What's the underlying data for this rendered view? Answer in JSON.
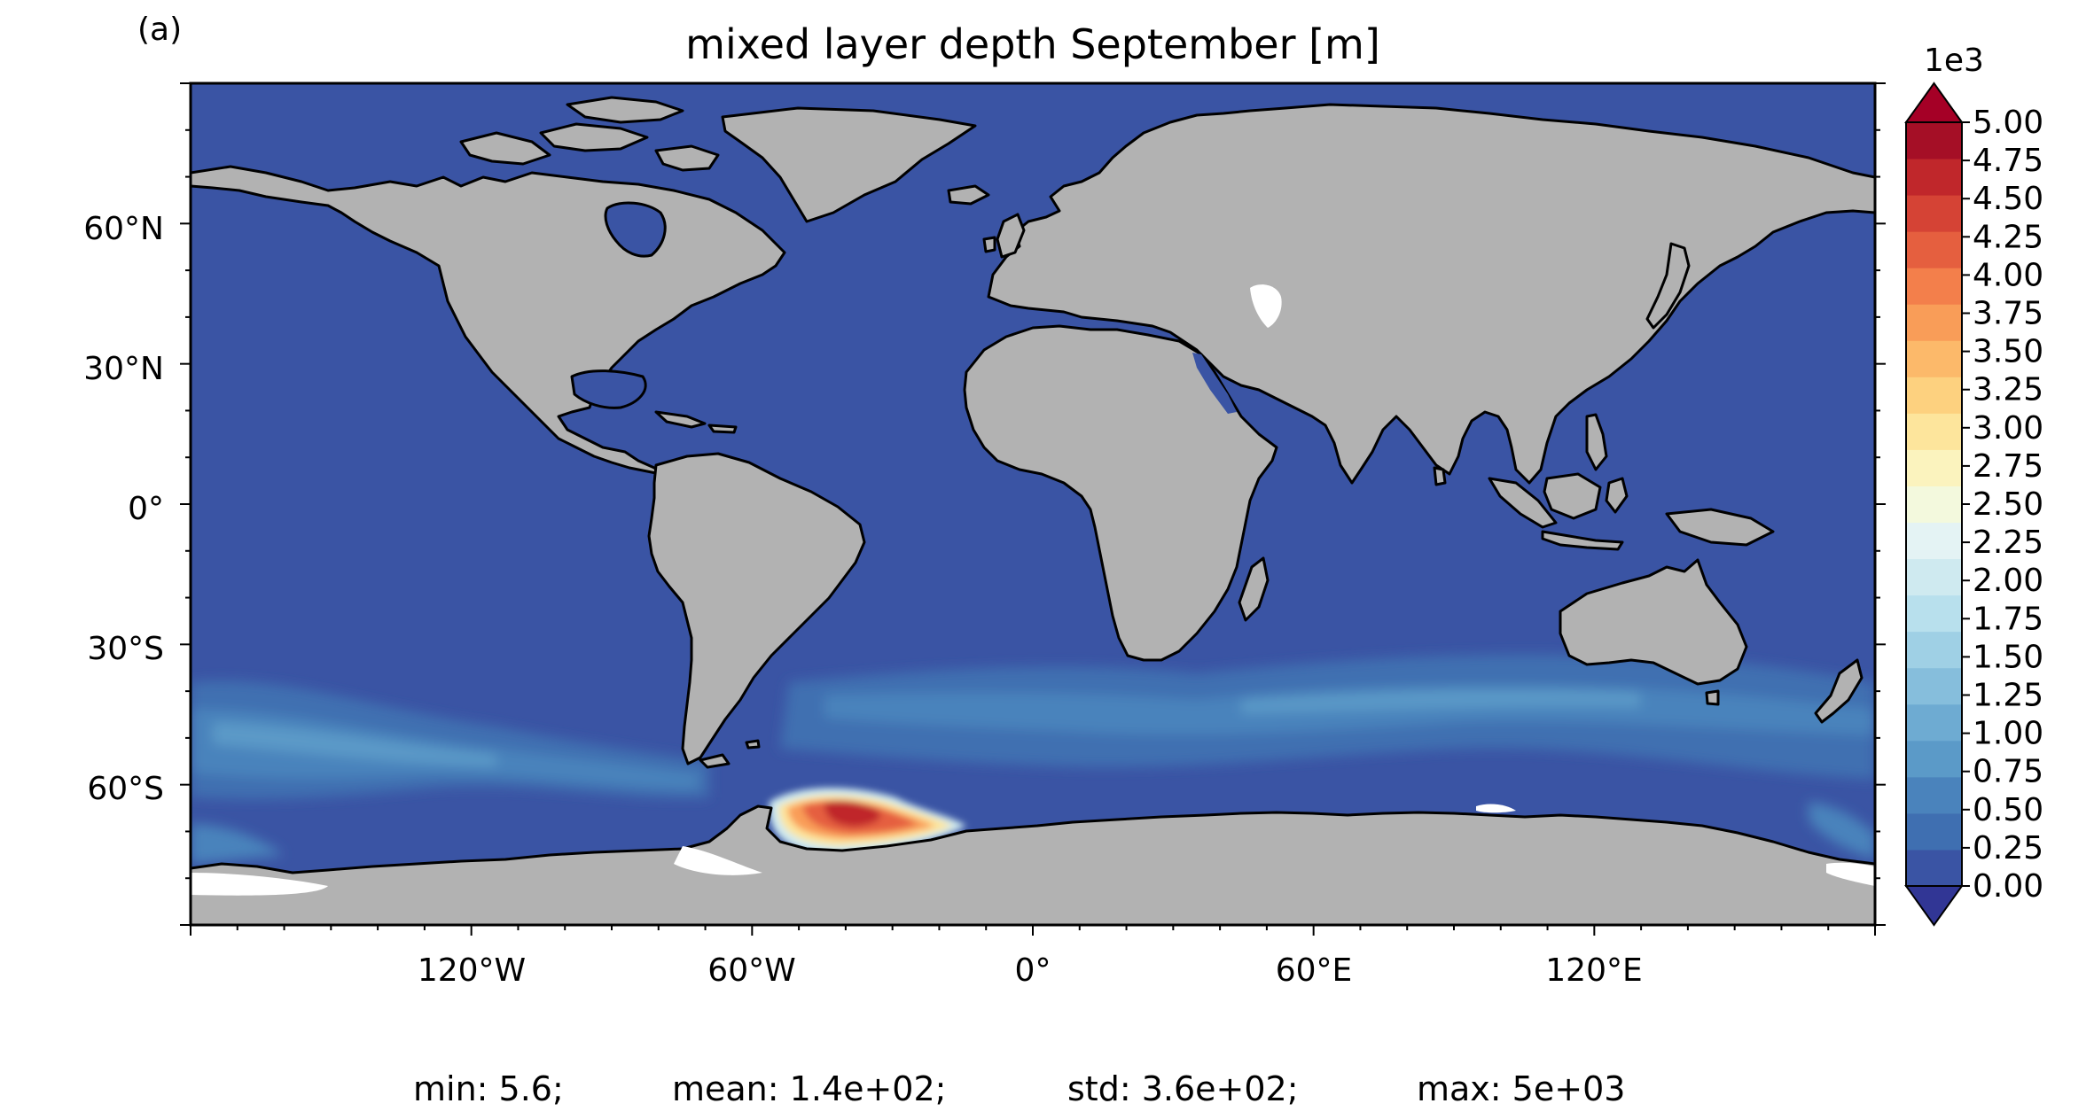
{
  "panel_label": "(a)",
  "title": "mixed layer depth September [m]",
  "colorbar": {
    "multiplier": "1e3",
    "tick_labels": [
      "5.00",
      "4.75",
      "4.50",
      "4.25",
      "4.00",
      "3.75",
      "3.50",
      "3.25",
      "3.00",
      "2.75",
      "2.50",
      "2.25",
      "2.00",
      "1.75",
      "1.50",
      "1.25",
      "1.00",
      "0.75",
      "0.50",
      "0.25",
      "0.00"
    ],
    "colors_low_to_high": [
      "#3a54a4",
      "#3f6fb1",
      "#4a83bc",
      "#5b9ac8",
      "#6eabd2",
      "#86bedc",
      "#9fd0e5",
      "#b8e0ed",
      "#cfeaf0",
      "#e4f3f4",
      "#f3f9dd",
      "#fbf3be",
      "#fde59c",
      "#fdd17f",
      "#fcb96a",
      "#f99d58",
      "#f37f4b",
      "#e55f3f",
      "#d54335",
      "#c0272b",
      "#a50f26"
    ],
    "under_color": "#313695",
    "over_color": "#a50026"
  },
  "axes": {
    "lat_labels": [
      "60°N",
      "30°N",
      "0°",
      "30°S",
      "60°S"
    ],
    "lon_labels": [
      "120°W",
      "60°W",
      "0°",
      "60°E",
      "120°E"
    ]
  },
  "map": {
    "ocean_color": "#3a54a4",
    "land_color": "#b2b2b2",
    "ice_color": "#ffffff"
  },
  "stats": {
    "min": "min: 5.6;",
    "mean": "mean: 1.4e+02;",
    "std": "std: 3.6e+02;",
    "max": "max: 5e+03"
  }
}
